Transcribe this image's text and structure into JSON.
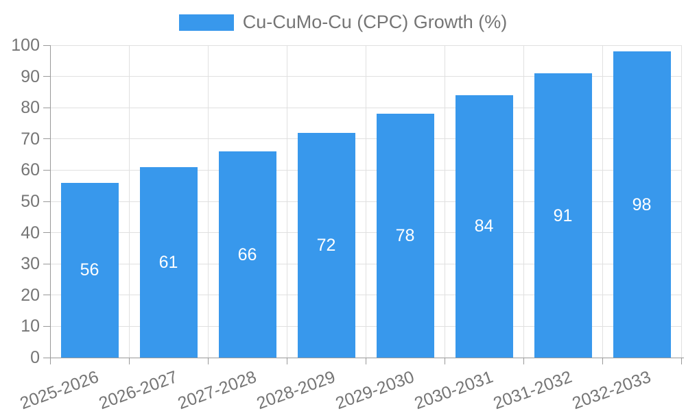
{
  "chart_data": {
    "type": "bar",
    "title": "",
    "legend": {
      "label": "Cu-CuMo-Cu (CPC) Growth (%)",
      "position": "top-center"
    },
    "categories": [
      "2025-2026",
      "2026-2027",
      "2027-2028",
      "2028-2029",
      "2029-2030",
      "2030-2031",
      "2031-2032",
      "2032-2033"
    ],
    "series": [
      {
        "name": "Cu-CuMo-Cu (CPC) Growth (%)",
        "values": [
          56,
          61,
          66,
          72,
          78,
          84,
          91,
          98
        ]
      }
    ],
    "value_labels": [
      "56",
      "61",
      "66",
      "72",
      "78",
      "84",
      "91",
      "98"
    ],
    "xlabel": "",
    "ylabel": "",
    "ylim": [
      0,
      100
    ],
    "yticks": [
      0,
      10,
      20,
      30,
      40,
      50,
      60,
      70,
      80,
      90,
      100
    ],
    "grid": true,
    "colors": {
      "bar": "#3898ec",
      "bar_value_text": "#ffffff",
      "grid": "#e0e0e0",
      "axis": "#999999",
      "tick_text": "#757575",
      "legend_text": "#757575"
    }
  }
}
